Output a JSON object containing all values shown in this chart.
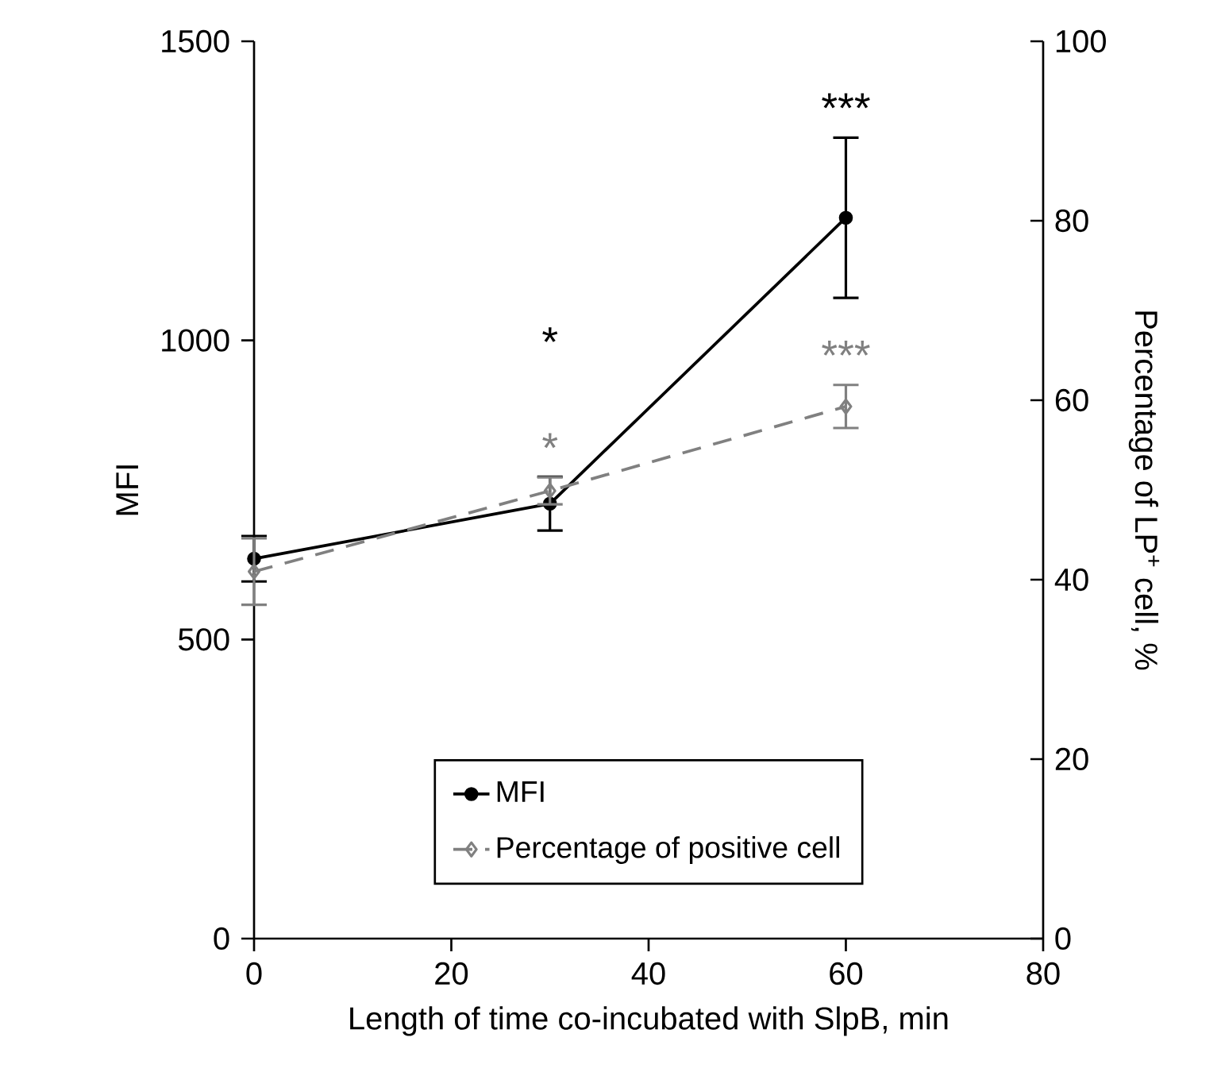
{
  "chart_data": {
    "type": "line",
    "xlabel": "Length of time co-incubated with SlpB, min",
    "ylabel": "MFI",
    "y2label": "Percentage of LP$^{+}$ cell, %",
    "x": [
      0,
      30,
      60
    ],
    "series": [
      {
        "name": "MFI",
        "color": "#000000",
        "values": [
          635,
          727,
          1205
        ],
        "errors": [
          38,
          45,
          134
        ],
        "marker": "circle",
        "line_style": "solid"
      },
      {
        "name": "Percentage of positive cell",
        "color": "#808080",
        "values": [
          40.9,
          49.9,
          59.3
        ],
        "errors": [
          3.7,
          1.5,
          2.4
        ],
        "marker": "diamond",
        "line_style": "dashed",
        "axis": "y2"
      }
    ],
    "xlim": [
      0,
      80
    ],
    "xticks": [
      0,
      20,
      40,
      60,
      80
    ],
    "ylim": [
      0,
      1500
    ],
    "yticks": [
      0,
      500,
      1000,
      1500
    ],
    "y2lim": [
      0,
      100
    ],
    "y2ticks": [
      0,
      20,
      40,
      60,
      80,
      100
    ],
    "annotations": [
      "*",
      "*",
      "***",
      "***"
    ],
    "legend": "bottom",
    "grid": false
  }
}
